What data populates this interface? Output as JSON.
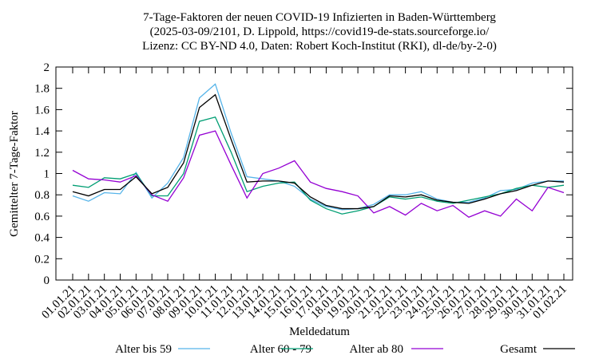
{
  "chart_data": {
    "type": "line",
    "title": [
      "7-Tage-Faktoren der neuen COVID-19 Infizierten in Baden-Württemberg",
      "(2025-03-09/2101, D. Lippold, https://covid19-de-stats.sourceforge.io/",
      "Lizenz: CC BY-ND 4.0, Daten: Robert Koch-Institut (RKI), dl-de/by-2-0)"
    ],
    "x_label": "Meldedatum",
    "y_label": "Gemittelter 7-Tage-Faktor",
    "categories": [
      "01.01.21",
      "02.01.21",
      "03.01.21",
      "04.01.21",
      "05.01.21",
      "06.01.21",
      "07.01.21",
      "08.01.21",
      "09.01.21",
      "10.01.21",
      "11.01.21",
      "12.01.21",
      "13.01.21",
      "14.01.21",
      "15.01.21",
      "16.01.21",
      "17.01.21",
      "18.01.21",
      "19.01.21",
      "20.01.21",
      "21.01.21",
      "22.01.21",
      "23.01.21",
      "24.01.21",
      "25.01.21",
      "26.01.21",
      "27.01.21",
      "28.01.21",
      "29.01.21",
      "30.01.21",
      "31.01.21",
      "01.02.21"
    ],
    "ylim": [
      0,
      2
    ],
    "yticks": [
      0,
      0.2,
      0.4,
      0.6,
      0.8,
      1,
      1.2,
      1.4,
      1.6,
      1.8,
      2
    ],
    "grid": false,
    "series": [
      {
        "name": "Alter bis 59",
        "color": "#56b4e9",
        "values": [
          0.79,
          0.74,
          0.82,
          0.81,
          1.01,
          0.77,
          0.91,
          1.15,
          1.71,
          1.84,
          1.38,
          0.97,
          0.95,
          0.93,
          0.88,
          0.76,
          0.69,
          0.66,
          0.67,
          0.71,
          0.8,
          0.8,
          0.83,
          0.76,
          0.73,
          0.73,
          0.77,
          0.84,
          0.85,
          0.91,
          0.93,
          0.93
        ]
      },
      {
        "name": "Alter 60 - 79",
        "color": "#009e73",
        "values": [
          0.89,
          0.87,
          0.96,
          0.95,
          1.0,
          0.79,
          0.79,
          1.0,
          1.49,
          1.53,
          1.2,
          0.83,
          0.88,
          0.91,
          0.92,
          0.75,
          0.67,
          0.62,
          0.65,
          0.69,
          0.78,
          0.76,
          0.78,
          0.74,
          0.72,
          0.75,
          0.78,
          0.81,
          0.86,
          0.89,
          0.87,
          0.89
        ]
      },
      {
        "name": "Alter ab 80",
        "color": "#9400d3",
        "values": [
          1.03,
          0.95,
          0.94,
          0.92,
          0.98,
          0.8,
          0.74,
          0.96,
          1.36,
          1.4,
          1.08,
          0.77,
          1.0,
          1.05,
          1.12,
          0.92,
          0.86,
          0.83,
          0.79,
          0.63,
          0.69,
          0.61,
          0.72,
          0.65,
          0.7,
          0.59,
          0.65,
          0.6,
          0.76,
          0.65,
          0.87,
          0.82
        ]
      },
      {
        "name": "Gesamt",
        "color": "#000000",
        "values": [
          0.83,
          0.79,
          0.85,
          0.85,
          0.97,
          0.81,
          0.87,
          1.1,
          1.62,
          1.74,
          1.32,
          0.92,
          0.93,
          0.93,
          0.91,
          0.78,
          0.7,
          0.67,
          0.67,
          0.69,
          0.79,
          0.78,
          0.8,
          0.75,
          0.73,
          0.72,
          0.76,
          0.81,
          0.84,
          0.89,
          0.93,
          0.92
        ]
      }
    ]
  }
}
